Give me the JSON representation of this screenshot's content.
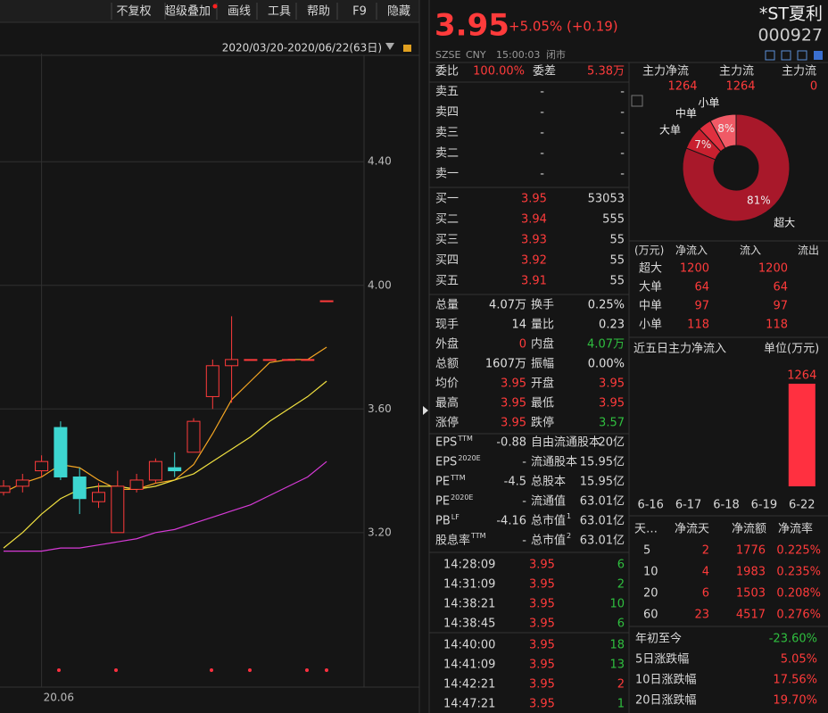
{
  "toolbar": [
    "不复权",
    "超级叠加",
    "画线",
    "工具",
    "帮助",
    "F9",
    "隐藏"
  ],
  "date_range": "2020/03/20-2020/06/22(63日)",
  "chart_data": [
    {
      "type": "candlestick",
      "colors": {
        "up": "#ff3b3b",
        "down": "#3dd6d0"
      },
      "open": [
        3.33,
        3.35,
        3.4,
        3.54,
        3.38,
        3.3,
        3.2,
        3.34,
        3.37,
        3.41,
        3.46,
        3.64,
        3.74,
        3.76,
        3.76,
        3.76,
        3.76,
        3.95
      ],
      "high": [
        3.37,
        3.39,
        3.45,
        3.56,
        3.41,
        3.36,
        3.4,
        3.39,
        3.44,
        3.46,
        3.57,
        3.76,
        3.9,
        3.76,
        3.76,
        3.76,
        3.76,
        3.95
      ],
      "low": [
        3.32,
        3.33,
        3.38,
        3.37,
        3.26,
        3.28,
        3.2,
        3.33,
        3.36,
        3.38,
        3.46,
        3.6,
        3.62,
        3.76,
        3.76,
        3.76,
        3.76,
        3.95
      ],
      "close": [
        3.35,
        3.37,
        3.43,
        3.38,
        3.31,
        3.33,
        3.35,
        3.37,
        3.43,
        3.4,
        3.56,
        3.74,
        3.76,
        3.76,
        3.76,
        3.76,
        3.76,
        3.95
      ],
      "series": [
        {
          "color": "#f5a623",
          "values": [
            3.33,
            3.36,
            3.38,
            3.42,
            3.41,
            3.37,
            3.34,
            3.34,
            3.36,
            3.37,
            3.42,
            3.52,
            3.63,
            3.69,
            3.75,
            3.76,
            3.76,
            3.8
          ]
        },
        {
          "color": "#f0e040",
          "values": [
            3.15,
            3.2,
            3.26,
            3.31,
            3.34,
            3.35,
            3.35,
            3.34,
            3.35,
            3.37,
            3.39,
            3.43,
            3.47,
            3.51,
            3.56,
            3.6,
            3.64,
            3.69
          ]
        },
        {
          "color": "#d63ad6",
          "values": [
            3.14,
            3.14,
            3.14,
            3.15,
            3.15,
            3.16,
            3.17,
            3.18,
            3.2,
            3.21,
            3.23,
            3.25,
            3.27,
            3.29,
            3.32,
            3.35,
            3.38,
            3.43
          ]
        }
      ],
      "ylim": [
        2.7,
        4.75
      ],
      "yticks": [
        {
          "value": 4.4,
          "label": "4.40"
        },
        {
          "value": 4.0,
          "label": "4.00"
        },
        {
          "value": 3.6,
          "label": "3.60"
        },
        {
          "value": 3.2,
          "label": "3.20"
        }
      ],
      "xticks": [
        {
          "value": 2,
          "label": "20.06"
        }
      ],
      "grid": true
    },
    {
      "type": "pie",
      "categories": [
        "超大",
        "大单",
        "中单",
        "小单"
      ],
      "values": [
        81,
        7,
        4,
        8
      ],
      "value_labels": [
        "81%",
        "7%",
        null,
        "8%"
      ],
      "colors": [
        "#a8182a",
        "#c8202f",
        "#e0303f",
        "#f05a66"
      ]
    },
    {
      "type": "bar",
      "title": "近五日主力净流入",
      "subtitle": "单位(万元)",
      "categories": [
        "6-16",
        "6-17",
        "6-18",
        "6-19",
        "6-22"
      ],
      "values": [
        0,
        0,
        0,
        0,
        1264
      ],
      "color": "#ff3040"
    }
  ],
  "quote": {
    "price": "3.95",
    "change": "+5.05% (+0.19)",
    "name": "*ST夏利",
    "code": "000927",
    "status": [
      "SZSE",
      "CNY",
      "15:00:03",
      "闭市"
    ]
  },
  "order_ratio": {
    "label": "委比",
    "value": "100.00%",
    "label2": "委差",
    "value2": "5.38万"
  },
  "asks": [
    {
      "label": "卖五",
      "price": "-",
      "volume": "-"
    },
    {
      "label": "卖四",
      "price": "-",
      "volume": "-"
    },
    {
      "label": "卖三",
      "price": "-",
      "volume": "-"
    },
    {
      "label": "卖二",
      "price": "-",
      "volume": "-"
    },
    {
      "label": "卖一",
      "price": "-",
      "volume": "-"
    }
  ],
  "bids": [
    {
      "label": "买一",
      "price": "3.95",
      "volume": "53053"
    },
    {
      "label": "买二",
      "price": "3.94",
      "volume": "555"
    },
    {
      "label": "买三",
      "price": "3.93",
      "volume": "55"
    },
    {
      "label": "买四",
      "price": "3.92",
      "volume": "55"
    },
    {
      "label": "买五",
      "price": "3.91",
      "volume": "55"
    }
  ],
  "stats": [
    {
      "label": "总量",
      "value": "4.07万",
      "label2": "换手",
      "value2": "0.25%",
      "color": "#e0e0e0",
      "color2": "#e0e0e0"
    },
    {
      "label": "现手",
      "value": "14",
      "label2": "量比",
      "value2": "0.23",
      "color": "#e0e0e0",
      "color2": "#e0e0e0"
    },
    {
      "label": "外盘",
      "value": "0",
      "label2": "内盘",
      "value2": "4.07万",
      "color": "#ff3b3b",
      "color2": "#2fbf3f"
    },
    {
      "label": "总额",
      "value": "1607万",
      "label2": "振幅",
      "value2": "0.00%",
      "color": "#e0e0e0",
      "color2": "#e0e0e0"
    },
    {
      "label": "均价",
      "value": "3.95",
      "label2": "开盘",
      "value2": "3.95",
      "color": "#ff3b3b",
      "color2": "#ff3b3b"
    },
    {
      "label": "最高",
      "value": "3.95",
      "label2": "最低",
      "value2": "3.95",
      "color": "#ff3b3b",
      "color2": "#ff3b3b"
    },
    {
      "label": "涨停",
      "value": "3.95",
      "label2": "跌停",
      "value2": "3.57",
      "color": "#ff3b3b",
      "color2": "#2fbf3f"
    }
  ],
  "fundamentals": [
    {
      "label": "EPS",
      "sup": "TTM",
      "value": "-0.88",
      "label2": "自由流通股本",
      "value2": "20亿"
    },
    {
      "label": "EPS",
      "sup": "2020E",
      "value": "-",
      "label2": "流通股本",
      "value2": "15.95亿"
    },
    {
      "label": "PE",
      "sup": "TTM",
      "value": "-4.5",
      "label2": "总股本",
      "value2": "15.95亿"
    },
    {
      "label": "PE",
      "sup": "2020E",
      "value": "-",
      "label2": "流通值",
      "value2": "63.01亿"
    },
    {
      "label": "PB",
      "sup": "LF",
      "value": "-4.16",
      "label2": "总市值",
      "sup2": "1",
      "value2": "63.01亿"
    },
    {
      "label": "股息率",
      "sup": "TTM",
      "value": "-",
      "label2": "总市值",
      "sup2": "2",
      "value2": "63.01亿"
    }
  ],
  "trades": [
    {
      "time": "14:28:09",
      "price": "3.95",
      "volume": "6",
      "color": "#2fbf3f"
    },
    {
      "time": "14:31:09",
      "price": "3.95",
      "volume": "2",
      "color": "#2fbf3f"
    },
    {
      "time": "14:38:21",
      "price": "3.95",
      "volume": "10",
      "color": "#2fbf3f"
    },
    {
      "time": "14:38:45",
      "price": "3.95",
      "volume": "6",
      "color": "#2fbf3f"
    },
    {
      "time": "14:40:00",
      "price": "3.95",
      "volume": "18",
      "color": "#2fbf3f"
    },
    {
      "time": "14:41:09",
      "price": "3.95",
      "volume": "13",
      "color": "#2fbf3f"
    },
    {
      "time": "14:42:21",
      "price": "3.95",
      "volume": "2",
      "color": "#ff3b3b"
    },
    {
      "time": "14:47:21",
      "price": "3.95",
      "volume": "1",
      "color": "#2fbf3f"
    }
  ],
  "capital_flow": {
    "headers": [
      "主力净流",
      "主力流",
      "主力流"
    ],
    "values": [
      "1264",
      "1264",
      "0"
    ]
  },
  "flow_table": {
    "headers": [
      "(万元)",
      "净流入",
      "流入",
      "流出"
    ],
    "rows": [
      [
        "超大",
        "1200",
        "1200"
      ],
      [
        "大单",
        "64",
        "64"
      ],
      [
        "中单",
        "97",
        "97"
      ],
      [
        "小单",
        "118",
        "118"
      ]
    ]
  },
  "period_table": {
    "headers": [
      "天…",
      "净流天",
      "净流额",
      "净流率"
    ],
    "rows": [
      [
        "5",
        "2",
        "1776",
        "0.225%"
      ],
      [
        "10",
        "4",
        "1983",
        "0.235%"
      ],
      [
        "20",
        "6",
        "1503",
        "0.208%"
      ],
      [
        "60",
        "23",
        "4517",
        "0.276%"
      ]
    ]
  },
  "performance": [
    {
      "label": "年初至今",
      "value": "-23.60%",
      "color": "#2fbf3f"
    },
    {
      "label": "5日涨跌幅",
      "value": "5.05%",
      "color": "#ff3b3b"
    },
    {
      "label": "10日涨跌幅",
      "value": "17.56%",
      "color": "#ff3b3b"
    },
    {
      "label": "20日涨跌幅",
      "value": "19.70%",
      "color": "#ff3b3b"
    }
  ]
}
